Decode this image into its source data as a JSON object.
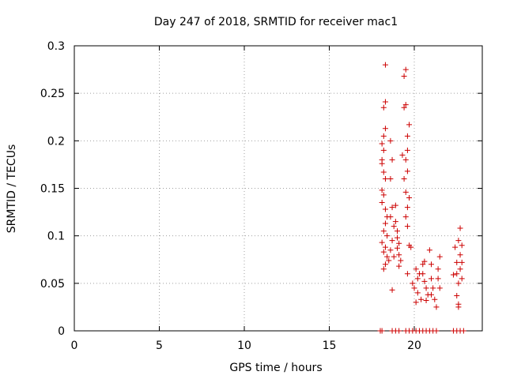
{
  "chart_data": {
    "type": "scatter",
    "title": "Day 247 of 2018, SRMTID for receiver mac1",
    "xlabel": "GPS time / hours",
    "ylabel": "SRMTID / TECUs",
    "xlim": [
      0,
      24
    ],
    "ylim": [
      0,
      0.3
    ],
    "x_ticks": [
      0,
      5,
      10,
      15,
      20
    ],
    "x_tick_labels": [
      "0",
      "5",
      "10",
      "15",
      "20"
    ],
    "y_ticks": [
      0,
      0.05,
      0.1,
      0.15,
      0.2,
      0.25,
      0.3
    ],
    "y_tick_labels": [
      "0",
      "0.05",
      "0.1",
      "0.15",
      "0.2",
      "0.25",
      "0.3"
    ],
    "grid": true,
    "marker": "plus",
    "color": "#cc0000",
    "points": [
      [
        18.0,
        0.0
      ],
      [
        18.1,
        0.0
      ],
      [
        18.7,
        0.0
      ],
      [
        18.9,
        0.0
      ],
      [
        19.1,
        0.0
      ],
      [
        19.5,
        0.0
      ],
      [
        19.7,
        0.0
      ],
      [
        19.9,
        0.0
      ],
      [
        20.1,
        0.0
      ],
      [
        20.3,
        0.0
      ],
      [
        20.5,
        0.0
      ],
      [
        20.7,
        0.0
      ],
      [
        20.9,
        0.0
      ],
      [
        21.1,
        0.0
      ],
      [
        21.3,
        0.0
      ],
      [
        22.3,
        0.0
      ],
      [
        22.5,
        0.0
      ],
      [
        22.7,
        0.0
      ],
      [
        22.9,
        0.0
      ],
      [
        18.3,
        0.28
      ],
      [
        18.3,
        0.241
      ],
      [
        18.2,
        0.235
      ],
      [
        18.2,
        0.205
      ],
      [
        18.3,
        0.213
      ],
      [
        18.1,
        0.197
      ],
      [
        18.2,
        0.19
      ],
      [
        18.1,
        0.18
      ],
      [
        18.1,
        0.176
      ],
      [
        18.2,
        0.167
      ],
      [
        18.3,
        0.16
      ],
      [
        18.1,
        0.148
      ],
      [
        18.2,
        0.143
      ],
      [
        18.1,
        0.135
      ],
      [
        18.3,
        0.128
      ],
      [
        18.4,
        0.12
      ],
      [
        18.3,
        0.113
      ],
      [
        18.2,
        0.105
      ],
      [
        18.4,
        0.1
      ],
      [
        18.1,
        0.093
      ],
      [
        18.3,
        0.088
      ],
      [
        18.2,
        0.083
      ],
      [
        18.4,
        0.078
      ],
      [
        18.5,
        0.074
      ],
      [
        18.3,
        0.07
      ],
      [
        18.2,
        0.065
      ],
      [
        18.6,
        0.2
      ],
      [
        18.7,
        0.18
      ],
      [
        18.6,
        0.16
      ],
      [
        18.7,
        0.13
      ],
      [
        18.6,
        0.12
      ],
      [
        18.8,
        0.11
      ],
      [
        18.7,
        0.095
      ],
      [
        18.6,
        0.085
      ],
      [
        18.8,
        0.078
      ],
      [
        18.7,
        0.043
      ],
      [
        18.9,
        0.132
      ],
      [
        18.9,
        0.115
      ],
      [
        19.0,
        0.105
      ],
      [
        19.0,
        0.098
      ],
      [
        19.1,
        0.092
      ],
      [
        19.0,
        0.087
      ],
      [
        19.1,
        0.08
      ],
      [
        19.2,
        0.074
      ],
      [
        19.1,
        0.068
      ],
      [
        19.3,
        0.185
      ],
      [
        19.4,
        0.235
      ],
      [
        19.5,
        0.275
      ],
      [
        19.4,
        0.268
      ],
      [
        19.5,
        0.238
      ],
      [
        19.6,
        0.205
      ],
      [
        19.7,
        0.217
      ],
      [
        19.6,
        0.19
      ],
      [
        19.5,
        0.18
      ],
      [
        19.6,
        0.168
      ],
      [
        19.4,
        0.16
      ],
      [
        19.5,
        0.146
      ],
      [
        19.7,
        0.14
      ],
      [
        19.6,
        0.13
      ],
      [
        19.5,
        0.12
      ],
      [
        19.6,
        0.11
      ],
      [
        19.7,
        0.09
      ],
      [
        19.8,
        0.088
      ],
      [
        19.6,
        0.06
      ],
      [
        19.9,
        0.05
      ],
      [
        20.0,
        0.045
      ],
      [
        20.1,
        0.03
      ],
      [
        20.1,
        0.065
      ],
      [
        20.2,
        0.055
      ],
      [
        20.3,
        0.06
      ],
      [
        20.2,
        0.04
      ],
      [
        20.4,
        0.033
      ],
      [
        20.5,
        0.07
      ],
      [
        20.6,
        0.073
      ],
      [
        20.5,
        0.06
      ],
      [
        20.6,
        0.052
      ],
      [
        20.7,
        0.045
      ],
      [
        20.8,
        0.038
      ],
      [
        20.7,
        0.032
      ],
      [
        20.9,
        0.085
      ],
      [
        21.0,
        0.07
      ],
      [
        21.0,
        0.055
      ],
      [
        21.1,
        0.045
      ],
      [
        21.0,
        0.038
      ],
      [
        21.2,
        0.033
      ],
      [
        21.3,
        0.025
      ],
      [
        21.4,
        0.065
      ],
      [
        21.4,
        0.055
      ],
      [
        21.5,
        0.045
      ],
      [
        21.5,
        0.078
      ],
      [
        22.3,
        0.059
      ],
      [
        22.4,
        0.088
      ],
      [
        22.5,
        0.072
      ],
      [
        22.5,
        0.037
      ],
      [
        22.6,
        0.025
      ],
      [
        22.6,
        0.028
      ],
      [
        22.5,
        0.06
      ],
      [
        22.7,
        0.108
      ],
      [
        22.6,
        0.095
      ],
      [
        22.8,
        0.09
      ],
      [
        22.7,
        0.08
      ],
      [
        22.8,
        0.072
      ],
      [
        22.7,
        0.065
      ],
      [
        22.8,
        0.055
      ],
      [
        22.6,
        0.05
      ]
    ]
  }
}
